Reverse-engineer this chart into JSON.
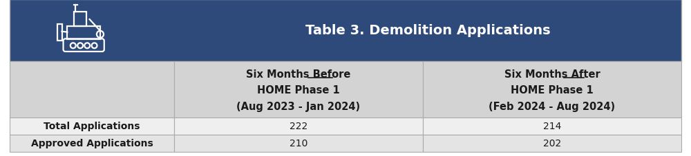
{
  "title": "Table 3. Demolition Applications",
  "header_bg_color": "#2E4A7A",
  "header_text_color": "#FFFFFF",
  "col_header_bg_color": "#D3D3D3",
  "col_header_text_color": "#1a1a1a",
  "row_bg_color_0": "#EFEFEF",
  "row_bg_color_1": "#E4E4E4",
  "row_text_color": "#1a1a1a",
  "border_color": "#AAAAAA",
  "outer_bg": "#FFFFFF",
  "col1_header_line1": "Six Months Before",
  "col1_header_line2": "HOME Phase 1",
  "col1_header_line3": "(Aug 2023 - Jan 2024)",
  "col2_header_line1": "Six Months After",
  "col2_header_line2": "HOME Phase 1",
  "col2_header_line3": "(Feb 2024 - Aug 2024)",
  "rows": [
    {
      "label": "Total Applications",
      "col1": "222",
      "col2": "214"
    },
    {
      "label": "Approved Applications",
      "col1": "210",
      "col2": "202"
    }
  ],
  "fig_width": 10.0,
  "fig_height": 2.28
}
